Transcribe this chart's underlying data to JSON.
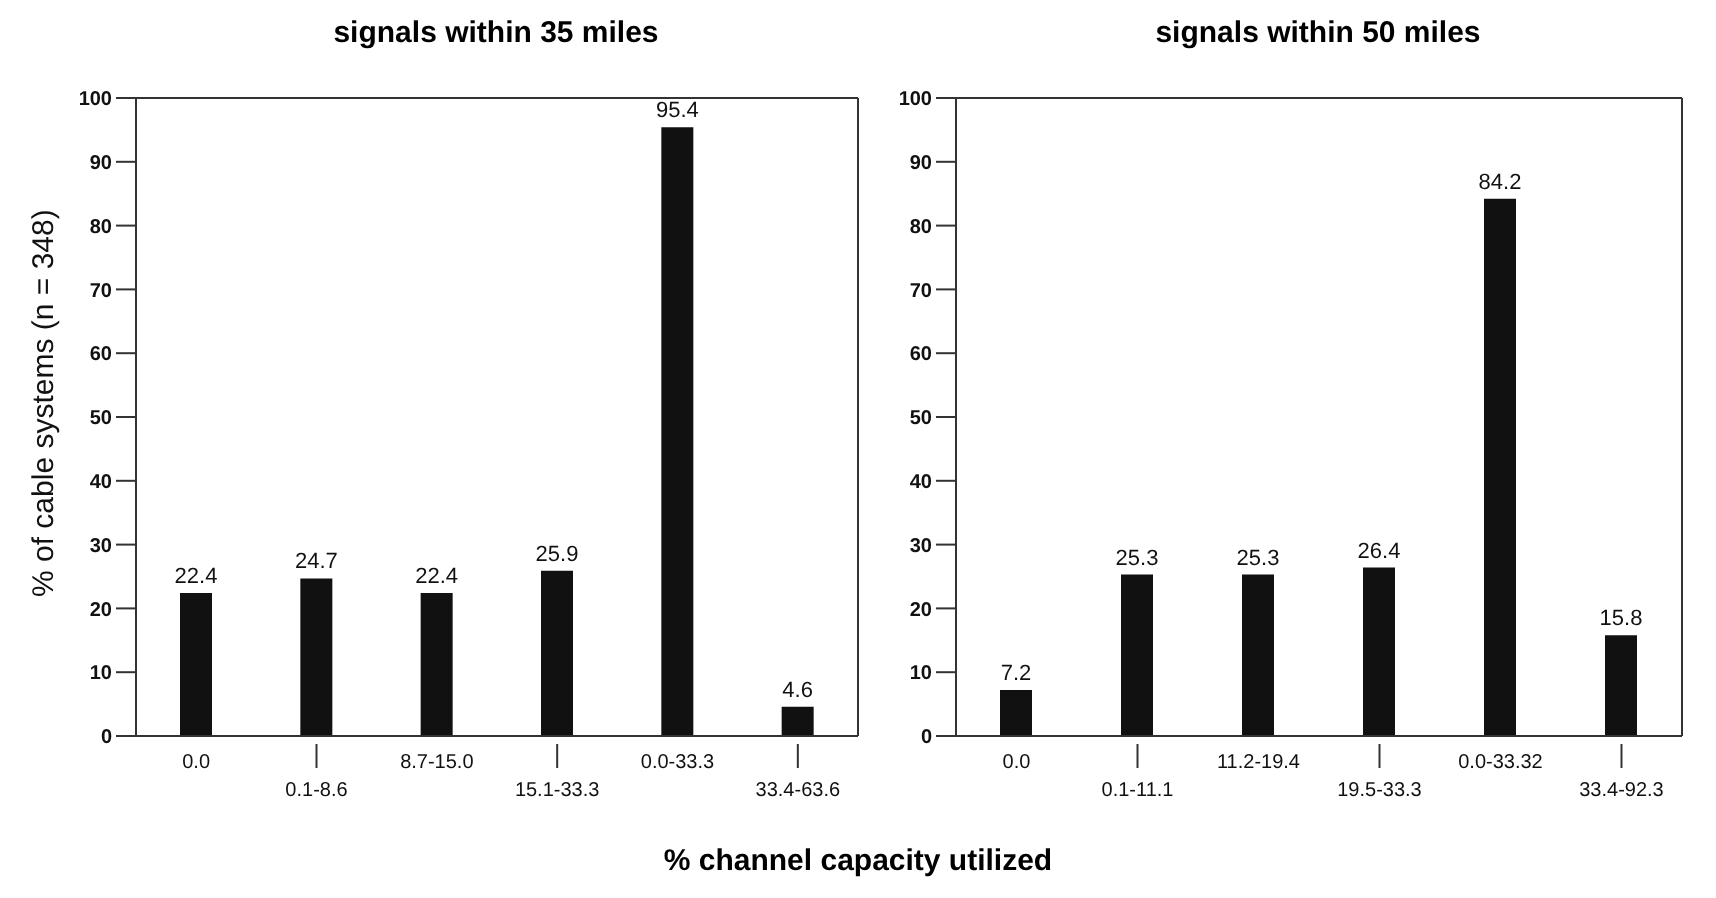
{
  "chart_data": [
    {
      "type": "bar",
      "title": "signals within 35 miles",
      "ylabel": "% of cable systems (n = 348)",
      "xlabel": "% channel capacity utilized",
      "categories": [
        "0.0",
        "0.1-8.6",
        "8.7-15.0",
        "15.1-33.3",
        "0.0-33.3",
        "33.4-63.6"
      ],
      "values": [
        22.4,
        24.7,
        22.4,
        25.9,
        95.4,
        4.6
      ],
      "color": "#111111",
      "ylim": [
        0,
        100
      ],
      "yticks": [
        0,
        10,
        20,
        30,
        40,
        50,
        60,
        70,
        80,
        90,
        100
      ],
      "data_labels": true,
      "grid": false,
      "legend": false
    },
    {
      "type": "bar",
      "title": "signals within 50 miles",
      "categories": [
        "0.0",
        "0.1-11.1",
        "11.2-19.4",
        "19.5-33.3",
        "0.0-33.32",
        "33.4-92.3"
      ],
      "values": [
        7.2,
        25.3,
        25.3,
        26.4,
        84.2,
        15.8
      ],
      "color": "#111111",
      "ylim": [
        0,
        100
      ],
      "yticks": [
        0,
        10,
        20,
        30,
        40,
        50,
        60,
        70,
        80,
        90,
        100
      ],
      "data_labels": true,
      "grid": false,
      "legend": false
    }
  ]
}
